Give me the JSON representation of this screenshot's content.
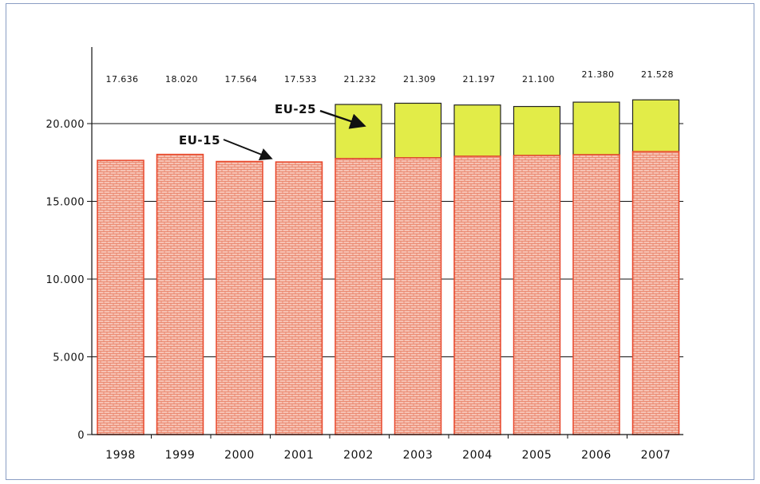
{
  "chart_data": {
    "type": "bar",
    "categories": [
      "1998",
      "1999",
      "2000",
      "2001",
      "2002",
      "2003",
      "2004",
      "2005",
      "2006",
      "2007"
    ],
    "series": [
      {
        "name": "EU-15",
        "values": [
          17636,
          18020,
          17564,
          17533,
          17750,
          17800,
          17900,
          17950,
          18000,
          18200
        ]
      },
      {
        "name": "EU-25",
        "values": [
          null,
          null,
          null,
          null,
          21232,
          21309,
          21197,
          21100,
          21380,
          21528
        ]
      }
    ],
    "total_labels": [
      "17.636",
      "18.020",
      "17.564",
      "17.533",
      "21.232",
      "21.309",
      "21.197",
      "21.100",
      "21.380",
      "21.528"
    ],
    "y_ticks": [
      {
        "value": 0,
        "label": "0"
      },
      {
        "value": 5000,
        "label": "5.000"
      },
      {
        "value": 10000,
        "label": "10.000"
      },
      {
        "value": 15000,
        "label": "15.000"
      },
      {
        "value": 20000,
        "label": "20.000"
      }
    ],
    "ylim": [
      0,
      25000
    ],
    "grid": true,
    "annotations": [
      {
        "text": "EU-15",
        "points_to": "2001"
      },
      {
        "text": "EU-25",
        "points_to": "2002"
      }
    ],
    "colors": {
      "eu15_fill": "#f6c2b4",
      "eu15_edge": "#e8472b",
      "eu25_fill": "#e2ec48",
      "eu25_edge": "#222222",
      "grid": "#111111"
    }
  }
}
